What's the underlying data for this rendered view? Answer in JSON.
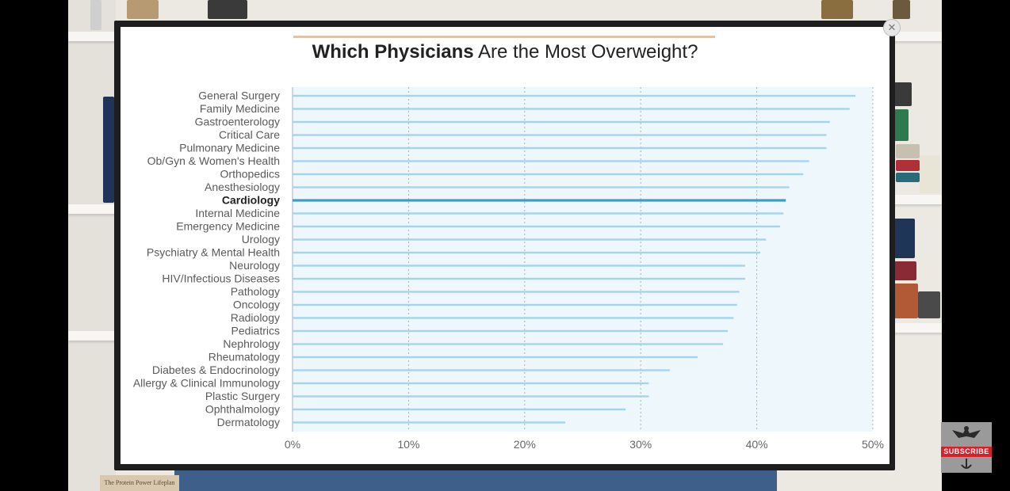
{
  "chart_data": {
    "type": "bar",
    "orientation": "horizontal",
    "title_bold": "Which Physicians",
    "title_rest": " Are the Most Overweight?",
    "categories": [
      "General Surgery",
      "Family Medicine",
      "Gastroenterology",
      "Critical Care",
      "Pulmonary Medicine",
      "Ob/Gyn & Women's Health",
      "Orthopedics",
      "Anesthesiology",
      "Cardiology",
      "Internal Medicine",
      "Emergency Medicine",
      "Urology",
      "Psychiatry & Mental Health",
      "Neurology",
      "HIV/Infectious Diseases",
      "Pathology",
      "Oncology",
      "Radiology",
      "Pediatrics",
      "Nephrology",
      "Rheumatology",
      "Diabetes & Endocrinology",
      "Allergy & Clinical Immunology",
      "Plastic Surgery",
      "Ophthalmology",
      "Dermatology"
    ],
    "values": [
      48.5,
      48,
      46.3,
      46,
      46,
      44.5,
      44,
      42.8,
      42.5,
      42.3,
      42,
      40.8,
      40.3,
      39,
      39,
      38.5,
      38.3,
      38,
      37.5,
      37.1,
      34.9,
      32.5,
      30.7,
      30.7,
      28.7,
      23.5
    ],
    "highlight": "Cardiology",
    "xlim": [
      0,
      50
    ],
    "xticks": [
      "0%",
      "10%",
      "20%",
      "30%",
      "40%",
      "50%"
    ],
    "grid": true,
    "bar_color": "#a3d4ee",
    "highlight_color": "#3c9dcd",
    "plot_bg": "#eef7fc"
  },
  "overlay": {
    "close_glyph": "✕",
    "subscribe_label": "SUBSCRIBE",
    "book_spine": "The Protein Power Lifeplan"
  }
}
